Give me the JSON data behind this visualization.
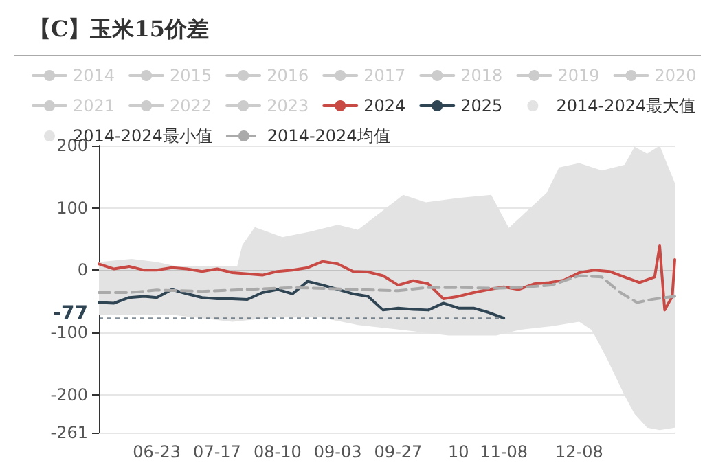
{
  "chart_data": {
    "type": "line",
    "title": "【C】玉米15价差",
    "xlim": [
      "2024-05-31",
      "2025-01-15"
    ],
    "xticks": [
      {
        "value": "2024-06-23",
        "label": "06-23"
      },
      {
        "value": "2024-07-17",
        "label": "07-17"
      },
      {
        "value": "2024-08-10",
        "label": "08-10"
      },
      {
        "value": "2024-09-03",
        "label": "09-03"
      },
      {
        "value": "2024-09-27",
        "label": "09-27"
      },
      {
        "value": "2024-10-21",
        "label": "10"
      },
      {
        "value": "2024-11-08",
        "label": "11-08"
      },
      {
        "value": "2024-12-08",
        "label": "12-08"
      }
    ],
    "ylim": [
      -261,
      200
    ],
    "yticks": [
      200,
      100,
      0,
      -100,
      -200,
      -261
    ],
    "grid": "y",
    "legend": "top",
    "annotations": [
      {
        "text": "-77",
        "x": "2024-11-08",
        "y": -77
      }
    ],
    "series": [
      {
        "name": "2014",
        "color": "#cccccc"
      },
      {
        "name": "2015",
        "color": "#cccccc"
      },
      {
        "name": "2016",
        "color": "#cccccc"
      },
      {
        "name": "2017",
        "color": "#cccccc"
      },
      {
        "name": "2018",
        "color": "#cccccc"
      },
      {
        "name": "2019",
        "color": "#cccccc"
      },
      {
        "name": "2020",
        "color": "#cccccc"
      },
      {
        "name": "2021",
        "color": "#cccccc"
      },
      {
        "name": "2022",
        "color": "#cccccc"
      },
      {
        "name": "2023",
        "color": "#cccccc"
      },
      {
        "name": "2024",
        "color": "#c94a45",
        "x": [
          "2024-05-31",
          "2024-06-06",
          "2024-06-12",
          "2024-06-18",
          "2024-06-23",
          "2024-06-29",
          "2024-07-05",
          "2024-07-11",
          "2024-07-17",
          "2024-07-23",
          "2024-07-29",
          "2024-08-04",
          "2024-08-10",
          "2024-08-16",
          "2024-08-22",
          "2024-08-28",
          "2024-09-03",
          "2024-09-09",
          "2024-09-15",
          "2024-09-21",
          "2024-09-27",
          "2024-10-03",
          "2024-10-09",
          "2024-10-15",
          "2024-10-21",
          "2024-10-27",
          "2024-11-02",
          "2024-11-08",
          "2024-11-14",
          "2024-11-20",
          "2024-11-26",
          "2024-12-02",
          "2024-12-08",
          "2024-12-14",
          "2024-12-20",
          "2024-12-26",
          "2025-01-01",
          "2025-01-07",
          "2025-01-09",
          "2025-01-11",
          "2025-01-14",
          "2025-01-15"
        ],
        "values": [
          10,
          2,
          6,
          0,
          0,
          4,
          2,
          -2,
          2,
          -4,
          -6,
          -8,
          -2,
          0,
          4,
          14,
          10,
          -2,
          -3,
          -9,
          -24,
          -17,
          -22,
          -46,
          -42,
          -36,
          -31,
          -27,
          -31,
          -22,
          -20,
          -16,
          -4,
          0,
          -2,
          -11,
          -20,
          -11,
          39,
          -64,
          -42,
          17
        ]
      },
      {
        "name": "2025",
        "color": "#2f4554",
        "x": [
          "2024-05-31",
          "2024-06-06",
          "2024-06-12",
          "2024-06-18",
          "2024-06-23",
          "2024-06-29",
          "2024-07-05",
          "2024-07-11",
          "2024-07-17",
          "2024-07-23",
          "2024-07-29",
          "2024-08-04",
          "2024-08-10",
          "2024-08-16",
          "2024-08-22",
          "2024-08-28",
          "2024-09-03",
          "2024-09-09",
          "2024-09-15",
          "2024-09-21",
          "2024-09-27",
          "2024-10-03",
          "2024-10-09",
          "2024-10-15",
          "2024-10-21",
          "2024-10-27",
          "2024-11-02",
          "2024-11-08"
        ],
        "values": [
          -52,
          -53,
          -44,
          -42,
          -44,
          -31,
          -38,
          -44,
          -46,
          -46,
          -47,
          -36,
          -31,
          -38,
          -18,
          -24,
          -31,
          -38,
          -42,
          -64,
          -61,
          -63,
          -64,
          -53,
          -61,
          -61,
          -68,
          -77
        ]
      },
      {
        "name": "2014-2024最大值",
        "type": "area",
        "color": "#e3e3e3",
        "x": [
          "2024-05-31",
          "2024-06-13",
          "2024-06-23",
          "2024-06-30",
          "2024-07-25",
          "2024-07-27",
          "2024-08-01",
          "2024-08-12",
          "2024-08-23",
          "2024-09-03",
          "2024-09-11",
          "2024-09-29",
          "2024-10-08",
          "2024-10-21",
          "2024-11-03",
          "2024-11-10",
          "2024-11-25",
          "2024-11-30",
          "2024-12-08",
          "2024-12-17",
          "2024-12-26",
          "2024-12-30",
          "2025-01-04",
          "2025-01-09",
          "2025-01-15"
        ],
        "values": [
          13,
          18,
          13,
          7,
          7,
          40,
          69,
          53,
          62,
          73,
          65,
          121,
          109,
          116,
          121,
          68,
          124,
          165,
          172,
          160,
          169,
          198,
          187,
          200,
          140
        ]
      },
      {
        "name": "2014-2024最小值",
        "type": "area",
        "color": "#e3e3e3",
        "x": [
          "2024-05-31",
          "2024-06-15",
          "2024-06-30",
          "2024-07-23",
          "2024-08-09",
          "2024-08-27",
          "2024-09-11",
          "2024-09-29",
          "2024-10-17",
          "2024-11-05",
          "2024-11-14",
          "2024-11-27",
          "2024-12-08",
          "2024-12-13",
          "2024-12-19",
          "2024-12-26",
          "2024-12-30",
          "2025-01-04",
          "2025-01-09",
          "2025-01-15"
        ],
        "values": [
          -72,
          -72,
          -72,
          -83,
          -76,
          -76,
          -88,
          -96,
          -105,
          -105,
          -96,
          -90,
          -83,
          -96,
          -142,
          -201,
          -231,
          -253,
          -257,
          -253
        ]
      },
      {
        "name": "2014-2024均值",
        "color": "#aaaaaa",
        "line_style": "dashed",
        "x": [
          "2024-05-31",
          "2024-06-12",
          "2024-06-23",
          "2024-07-11",
          "2024-07-29",
          "2024-08-16",
          "2024-09-03",
          "2024-09-11",
          "2024-09-27",
          "2024-10-08",
          "2024-10-21",
          "2024-11-05",
          "2024-11-14",
          "2024-11-27",
          "2024-12-08",
          "2024-12-17",
          "2024-12-24",
          "2024-12-31",
          "2025-01-06",
          "2025-01-11",
          "2025-01-15"
        ],
        "values": [
          -36,
          -36,
          -32,
          -34,
          -31,
          -28,
          -30,
          -31,
          -33,
          -28,
          -28,
          -29,
          -28,
          -24,
          -9,
          -11,
          -35,
          -52,
          -47,
          -44,
          -42
        ]
      }
    ]
  }
}
